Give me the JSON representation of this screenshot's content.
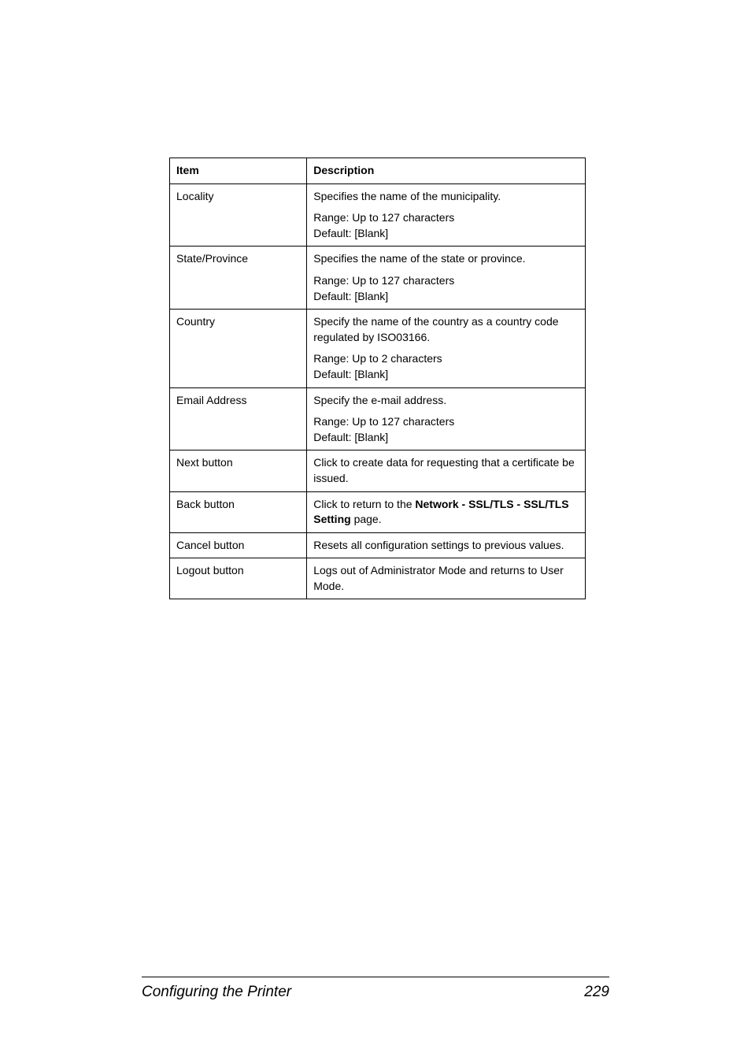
{
  "table": {
    "headers": {
      "item": "Item",
      "description": "Description"
    },
    "rows": [
      {
        "item": "Locality",
        "groups": [
          "Specifies the name of the municipality.",
          "Range: Up to 127 characters\nDefault: [Blank]"
        ]
      },
      {
        "item": "State/Province",
        "groups": [
          "Specifies the name of the state or province.",
          "Range: Up to 127 characters\nDefault: [Blank]"
        ]
      },
      {
        "item": "Country",
        "groups": [
          "Specify the name of the country as a country code regulated by ISO03166.",
          "Range: Up to 2 characters\nDefault: [Blank]"
        ]
      },
      {
        "item": "Email Address",
        "groups": [
          "Specify the e-mail address.",
          "Range: Up to 127 characters\nDefault: [Blank]"
        ]
      },
      {
        "item": "Next button",
        "groups": [
          "Click to create data for requesting that a certificate be issued."
        ]
      },
      {
        "item": "Back button",
        "html": "Click to return to the <b>Network - SSL/TLS - SSL/TLS Setting</b> page."
      },
      {
        "item": "Cancel button",
        "groups": [
          "Resets all configuration settings to previous values."
        ]
      },
      {
        "item": "Logout button",
        "groups": [
          "Logs out of Administrator Mode and returns to User Mode."
        ]
      }
    ]
  },
  "footer": {
    "title": "Configuring the Printer",
    "pagenum": "229"
  },
  "colors": {
    "border": "#000000",
    "background": "#ffffff",
    "text": "#000000"
  },
  "fontsizes": {
    "table": 14,
    "footer": 19
  }
}
